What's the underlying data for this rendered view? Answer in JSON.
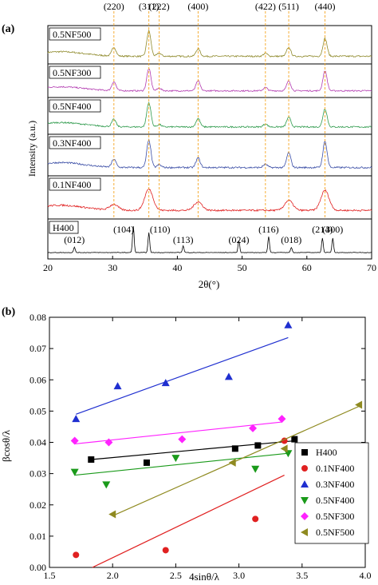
{
  "chart_data": [
    {
      "type": "line",
      "panel_label": "(a)",
      "xlabel": "2θ(°)",
      "ylabel": "Intensity (a.u.)",
      "xlim": [
        20,
        70
      ],
      "xticks": [
        20,
        30,
        40,
        50,
        60,
        70
      ],
      "reference_peaks": [
        {
          "label": "(220)",
          "x": 30.2
        },
        {
          "label": "(311)",
          "x": 35.6
        },
        {
          "label": "(222)",
          "x": 37.2
        },
        {
          "label": "(400)",
          "x": 43.2
        },
        {
          "label": "(422)",
          "x": 53.6
        },
        {
          "label": "(511)",
          "x": 57.2
        },
        {
          "label": "(440)",
          "x": 62.8
        }
      ],
      "series": [
        {
          "name": "0.5NF500",
          "color": "#8f8a2c",
          "peaks": [
            [
              30.2,
              0.35
            ],
            [
              35.6,
              1.0
            ],
            [
              37.2,
              0.12
            ],
            [
              43.2,
              0.3
            ],
            [
              53.6,
              0.12
            ],
            [
              57.2,
              0.35
            ],
            [
              62.8,
              0.7
            ]
          ]
        },
        {
          "name": "0.5NF300",
          "color": "#b23ab0",
          "peaks": [
            [
              30.2,
              0.4
            ],
            [
              35.6,
              1.0
            ],
            [
              37.2,
              0.12
            ],
            [
              43.2,
              0.45
            ],
            [
              53.6,
              0.15
            ],
            [
              57.2,
              0.45
            ],
            [
              62.8,
              0.9
            ]
          ]
        },
        {
          "name": "0.5NF400",
          "color": "#2e9a4c",
          "peaks": [
            [
              30.2,
              0.3
            ],
            [
              35.6,
              1.0
            ],
            [
              37.2,
              0.1
            ],
            [
              43.2,
              0.35
            ],
            [
              53.6,
              0.12
            ],
            [
              57.2,
              0.4
            ],
            [
              62.8,
              0.75
            ]
          ]
        },
        {
          "name": "0.3NF400",
          "color": "#3b4ea6",
          "peaks": [
            [
              30.2,
              0.3
            ],
            [
              35.6,
              1.0
            ],
            [
              37.2,
              0.1
            ],
            [
              43.2,
              0.35
            ],
            [
              53.6,
              0.12
            ],
            [
              57.2,
              0.55
            ],
            [
              62.8,
              0.95
            ]
          ]
        },
        {
          "name": "0.1NF400",
          "color": "#e02020",
          "peaks": [
            [
              30.2,
              0.2
            ],
            [
              35.6,
              0.75
            ],
            [
              43.2,
              0.3
            ],
            [
              57.2,
              0.35
            ],
            [
              62.8,
              0.7
            ]
          ]
        },
        {
          "name": "H400",
          "color": "#000000",
          "peaks": [
            [
              24.1,
              0.2
            ],
            [
              33.2,
              1.0
            ],
            [
              35.6,
              0.75
            ],
            [
              40.9,
              0.25
            ],
            [
              49.5,
              0.45
            ],
            [
              54.1,
              0.6
            ],
            [
              57.6,
              0.2
            ],
            [
              62.4,
              0.55
            ],
            [
              64.0,
              0.55
            ]
          ]
        }
      ],
      "h400_labels": [
        {
          "label": "(012)",
          "x": 24.1
        },
        {
          "label": "(104)",
          "x": 33.2
        },
        {
          "label": "(110)",
          "x": 35.6
        },
        {
          "label": "(113)",
          "x": 40.9
        },
        {
          "label": "(024)",
          "x": 49.5
        },
        {
          "label": "(116)",
          "x": 54.1
        },
        {
          "label": "(018)",
          "x": 57.6
        },
        {
          "label": "(214)",
          "x": 62.4
        },
        {
          "label": "(300)",
          "x": 64.0
        }
      ]
    },
    {
      "type": "scatter",
      "panel_label": "(b)",
      "xlabel": "4sinθ/λ",
      "ylabel": "βcosθ/λ",
      "xlim": [
        1.5,
        4.0
      ],
      "ylim": [
        0.0,
        0.08
      ],
      "xticks": [
        1.5,
        2.0,
        2.5,
        3.0,
        3.5,
        4.0
      ],
      "yticks": [
        0.0,
        0.01,
        0.02,
        0.03,
        0.04,
        0.05,
        0.06,
        0.07,
        0.08
      ],
      "legend_position": "bottom-right",
      "series": [
        {
          "name": "H400",
          "color": "#000000",
          "marker": "square",
          "points": [
            [
              1.83,
              0.0345
            ],
            [
              2.27,
              0.0335
            ],
            [
              2.97,
              0.038
            ],
            [
              3.15,
              0.039
            ],
            [
              3.44,
              0.041
            ]
          ],
          "fit": [
            [
              1.83,
              0.0345
            ],
            [
              3.44,
              0.0405
            ]
          ]
        },
        {
          "name": "0.1NF400",
          "color": "#e02020",
          "marker": "circle",
          "points": [
            [
              1.71,
              0.004
            ],
            [
              2.42,
              0.0055
            ],
            [
              3.13,
              0.0155
            ],
            [
              3.36,
              0.0405
            ]
          ],
          "fit": [
            [
              1.84,
              0.0
            ],
            [
              3.36,
              0.0295
            ]
          ]
        },
        {
          "name": "0.3NF400",
          "color": "#1f2fd0",
          "marker": "triangle-up",
          "points": [
            [
              1.71,
              0.0475
            ],
            [
              2.04,
              0.058
            ],
            [
              2.42,
              0.059
            ],
            [
              2.92,
              0.061
            ],
            [
              3.39,
              0.0775
            ]
          ],
          "fit": [
            [
              1.71,
              0.049
            ],
            [
              3.39,
              0.0735
            ]
          ]
        },
        {
          "name": "0.5NF400",
          "color": "#1a9a1a",
          "marker": "triangle-down",
          "points": [
            [
              1.7,
              0.0305
            ],
            [
              1.95,
              0.0265
            ],
            [
              2.5,
              0.035
            ],
            [
              3.13,
              0.0315
            ],
            [
              3.39,
              0.0365
            ]
          ],
          "fit": [
            [
              1.7,
              0.0295
            ],
            [
              3.39,
              0.0365
            ]
          ]
        },
        {
          "name": "0.5NF300",
          "color": "#ff22ff",
          "marker": "diamond",
          "points": [
            [
              1.7,
              0.0405
            ],
            [
              1.97,
              0.04
            ],
            [
              2.55,
              0.041
            ],
            [
              3.11,
              0.0445
            ],
            [
              3.34,
              0.0475
            ]
          ],
          "fit": [
            [
              1.7,
              0.0395
            ],
            [
              3.34,
              0.0465
            ]
          ]
        },
        {
          "name": "0.5NF500",
          "color": "#8f8a20",
          "marker": "triangle-left",
          "points": [
            [
              2.0,
              0.017
            ],
            [
              2.95,
              0.0335
            ],
            [
              3.36,
              0.038
            ],
            [
              3.95,
              0.052
            ]
          ],
          "fit": [
            [
              2.0,
              0.0165
            ],
            [
              3.95,
              0.0515
            ]
          ]
        }
      ]
    }
  ]
}
